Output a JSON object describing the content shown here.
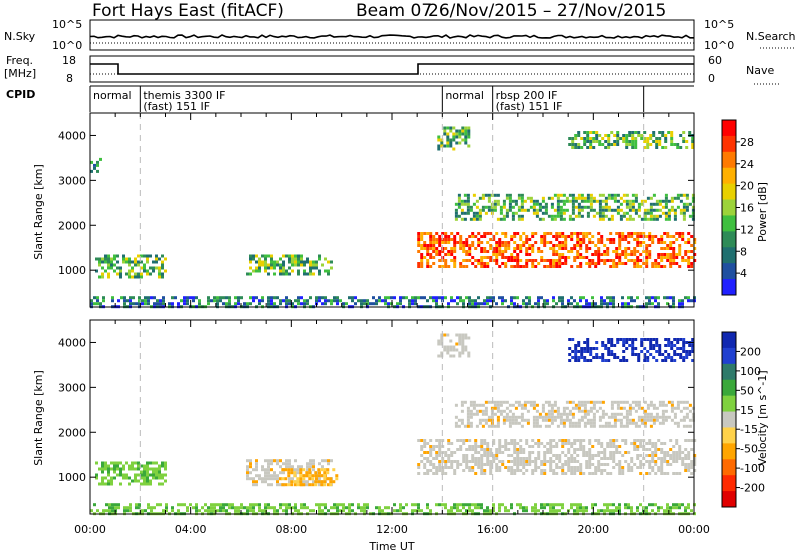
{
  "header": {
    "station": "Fort Hays East (fitACF)",
    "beam": "Beam 07",
    "dates": "26/Nov/2015 – 27/Nov/2015"
  },
  "top_panels": {
    "nsky_label": "N.Sky",
    "nsky_ticks": [
      "10^5",
      "10^0"
    ],
    "nsearch_label": "N.Search",
    "nsearch_ticks": [
      "10^5",
      "10^0"
    ],
    "freq_label": "Freq.",
    "freq_unit": "[MHz]",
    "freq_ticks": [
      "18",
      "8"
    ],
    "nave_label": "Nave",
    "nave_ticks": [
      "60",
      "0"
    ],
    "cpid_label": "CPID"
  },
  "cpid_segments": [
    {
      "start": 0.0,
      "end": 2.0,
      "label1": "normal",
      "label2": ""
    },
    {
      "start": 2.0,
      "end": 14.0,
      "label1": "themis 3300 IF",
      "label2": "(fast) 151 IF"
    },
    {
      "start": 14.0,
      "end": 16.0,
      "label1": "normal",
      "label2": ""
    },
    {
      "start": 16.0,
      "end": 22.0,
      "label1": "rbsp 200 IF",
      "label2": "(fast) 151 IF"
    },
    {
      "start": 22.0,
      "end": 24.0,
      "label1": "",
      "label2": ""
    }
  ],
  "axes": {
    "ylabel": "Slant Range [km]",
    "yticks": [
      "4000",
      "3000",
      "2000",
      "1000"
    ],
    "xlabel": "Time UT",
    "xticks": [
      "00:00",
      "04:00",
      "08:00",
      "12:00",
      "16:00",
      "20:00",
      "00:00"
    ]
  },
  "colorbars": {
    "power": {
      "label": "Power [dB]",
      "ticks": [
        "28",
        "24",
        "20",
        "16",
        "12",
        "8",
        "4"
      ],
      "colors": [
        "#ff0000",
        "#ff3300",
        "#ff7a00",
        "#ffb000",
        "#e8d000",
        "#9cd33a",
        "#3fbf3f",
        "#2e8b57",
        "#1f6f6f",
        "#1f4fa0",
        "#2020ff"
      ]
    },
    "velocity": {
      "label": "Velocity [m s^-1]",
      "ticks": [
        "200",
        "100",
        "50",
        "15",
        "-15",
        "-50",
        "-100",
        "-200"
      ],
      "colors": [
        "#1028b0",
        "#2040d0",
        "#2e7a6a",
        "#3aa83a",
        "#7fd13f",
        "#c8c8c0",
        "#ffd24a",
        "#ffa500",
        "#ff6a00",
        "#ff2a00",
        "#e00000"
      ]
    }
  },
  "chart_data": {
    "type": "heatmap",
    "x_range_hours": [
      0,
      24
    ],
    "y_range_km": [
      180,
      4500
    ],
    "vertical_markers_hours": [
      2,
      14,
      16,
      22
    ],
    "power_regions": [
      {
        "t0": 0.2,
        "t1": 3.0,
        "r0": 850,
        "r1": 1350,
        "level": "mid"
      },
      {
        "t0": 0.0,
        "t1": 0.4,
        "r0": 3200,
        "r1": 3500,
        "level": "low"
      },
      {
        "t0": 6.2,
        "t1": 9.6,
        "r0": 900,
        "r1": 1350,
        "level": "mid"
      },
      {
        "t0": 13.0,
        "t1": 24.0,
        "r0": 1100,
        "r1": 1850,
        "level": "high"
      },
      {
        "t0": 14.5,
        "t1": 24.0,
        "r0": 2100,
        "r1": 2700,
        "level": "mid"
      },
      {
        "t0": 13.8,
        "t1": 15.0,
        "r0": 3700,
        "r1": 4200,
        "level": "mid"
      },
      {
        "t0": 19.0,
        "t1": 24.0,
        "r0": 3700,
        "r1": 4100,
        "level": "mid"
      },
      {
        "t0": 0.0,
        "t1": 24.0,
        "r0": 180,
        "r1": 420,
        "level": "low"
      }
    ],
    "velocity_regions": [
      {
        "t0": 0.2,
        "t1": 3.0,
        "r0": 850,
        "r1": 1350,
        "kind": "slow"
      },
      {
        "t0": 6.2,
        "t1": 9.6,
        "r0": 850,
        "r1": 1400,
        "kind": "gray"
      },
      {
        "t0": 7.6,
        "t1": 9.8,
        "r0": 800,
        "r1": 1200,
        "kind": "away"
      },
      {
        "t0": 13.0,
        "t1": 24.0,
        "r0": 1100,
        "r1": 1850,
        "kind": "gray"
      },
      {
        "t0": 14.5,
        "t1": 24.0,
        "r0": 2100,
        "r1": 2700,
        "kind": "gray"
      },
      {
        "t0": 13.8,
        "t1": 15.0,
        "r0": 3700,
        "r1": 4200,
        "kind": "gray"
      },
      {
        "t0": 19.0,
        "t1": 24.0,
        "r0": 3600,
        "r1": 4100,
        "kind": "toward"
      },
      {
        "t0": 0.0,
        "t1": 24.0,
        "r0": 180,
        "r1": 420,
        "kind": "slow"
      }
    ]
  }
}
